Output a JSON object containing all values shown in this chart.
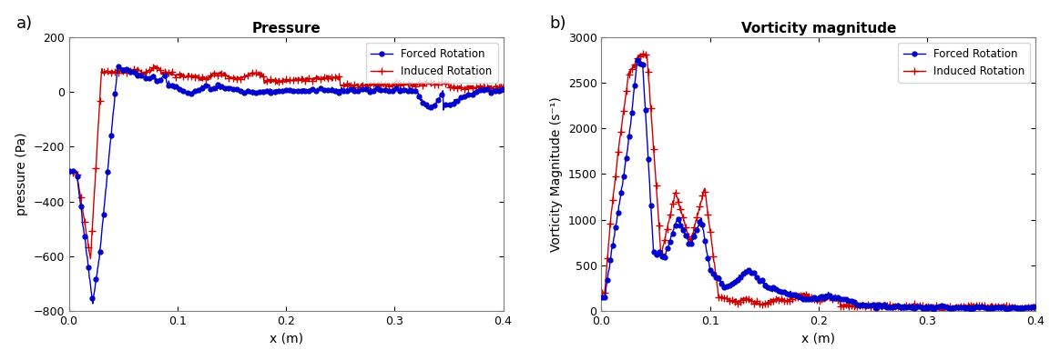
{
  "title_a": "Pressure",
  "title_b": "Vorticity magnitude",
  "xlabel": "x (m)",
  "ylabel_a": "pressure (Pa)",
  "ylabel_b": "Vorticity Magnitude (s⁻¹)",
  "legend_forced": "Forced Rotation",
  "legend_induced": "Induced Rotation",
  "xlim": [
    0,
    0.4
  ],
  "ylim_a": [
    -800,
    200
  ],
  "ylim_b": [
    0,
    3000
  ],
  "xticks": [
    0,
    0.1,
    0.2,
    0.3,
    0.4
  ],
  "yticks_a": [
    -800,
    -600,
    -400,
    -200,
    0,
    200
  ],
  "yticks_b": [
    0,
    500,
    1000,
    1500,
    2000,
    2500,
    3000
  ],
  "blue_color": "#0000cd",
  "red_color": "#cc0000",
  "label_a": "a)",
  "label_b": "b)",
  "bg_color": "#FFFFFF",
  "marker_size": 3.5,
  "linewidth": 1.0,
  "spine_color": "#808080"
}
